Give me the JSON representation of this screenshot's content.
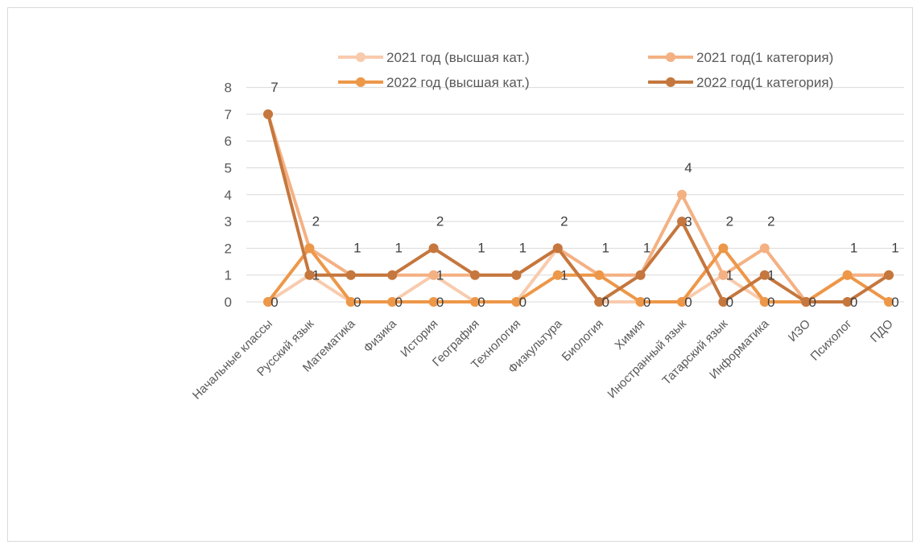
{
  "chart_data": {
    "type": "line",
    "categories": [
      "Начальные классы",
      "Русский язык",
      "Математика",
      "Физика",
      "История",
      "География",
      "Технология",
      "Физкультура",
      "Биология",
      "Химия",
      "Иностранный язык",
      "Татарский язык",
      "Информатика",
      "ИЗО",
      "Психолог",
      "ПДО"
    ],
    "series": [
      {
        "name": "2021 год (высшая кат.)",
        "color": "#f8cbad",
        "values": [
          0,
          1,
          0,
          0,
          1,
          0,
          0,
          2,
          0,
          0,
          0,
          1,
          0,
          0,
          1,
          1
        ]
      },
      {
        "name": "2021 год(1 категория)",
        "color": "#f4b183",
        "values": [
          7,
          2,
          1,
          1,
          1,
          1,
          1,
          2,
          1,
          1,
          4,
          1,
          2,
          0,
          1,
          1
        ]
      },
      {
        "name": "2022 год (высшая кат.)",
        "color": "#ed9748",
        "values": [
          0,
          2,
          0,
          0,
          0,
          0,
          0,
          1,
          1,
          0,
          0,
          2,
          0,
          0,
          1,
          0
        ]
      },
      {
        "name": "2022 год(1 категория)",
        "color": "#c5773e",
        "values": [
          7,
          1,
          1,
          1,
          2,
          1,
          1,
          2,
          0,
          1,
          3,
          0,
          1,
          0,
          0,
          1
        ]
      }
    ],
    "data_labels": [
      {
        "category": "Начальные классы",
        "text": "0"
      },
      {
        "category": "Начальные классы",
        "text": "7"
      },
      {
        "category": "Русский язык",
        "text": "2"
      },
      {
        "category": "Русский язык",
        "text": "1"
      },
      {
        "category": "Математика",
        "text": "1"
      },
      {
        "category": "Математика",
        "text": "0"
      },
      {
        "category": "Физика",
        "text": "1"
      },
      {
        "category": "Физика",
        "text": "0"
      },
      {
        "category": "История",
        "text": "2"
      },
      {
        "category": "История",
        "text": "1"
      },
      {
        "category": "История",
        "text": "0"
      },
      {
        "category": "География",
        "text": "1"
      },
      {
        "category": "География",
        "text": "0"
      },
      {
        "category": "Технология",
        "text": "1"
      },
      {
        "category": "Технология",
        "text": "0"
      },
      {
        "category": "Физкультура",
        "text": "2"
      },
      {
        "category": "Физкультура",
        "text": "1"
      },
      {
        "category": "Биология",
        "text": "1"
      },
      {
        "category": "Биология",
        "text": "0"
      },
      {
        "category": "Химия",
        "text": "1"
      },
      {
        "category": "Химия",
        "text": "0"
      },
      {
        "category": "Иностранный язык",
        "text": "4"
      },
      {
        "category": "Иностранный язык",
        "text": "3"
      },
      {
        "category": "Иностранный язык",
        "text": "0"
      },
      {
        "category": "Татарский язык",
        "text": "2"
      },
      {
        "category": "Татарский язык",
        "text": "1"
      },
      {
        "category": "Татарский язык",
        "text": "0"
      },
      {
        "category": "Информатика",
        "text": "2"
      },
      {
        "category": "Информатика",
        "text": "1"
      },
      {
        "category": "Информатика",
        "text": "0"
      },
      {
        "category": "ИЗО",
        "text": "0"
      },
      {
        "category": "Психолог",
        "text": "1"
      },
      {
        "category": "Психолог",
        "text": "0"
      },
      {
        "category": "ПДО",
        "text": "1"
      },
      {
        "category": "ПДО",
        "text": "0"
      }
    ],
    "ylim": [
      0,
      8
    ],
    "yticks": [
      0,
      1,
      2,
      3,
      4,
      5,
      6,
      7,
      8
    ],
    "grid": true,
    "legend_position": "top"
  }
}
